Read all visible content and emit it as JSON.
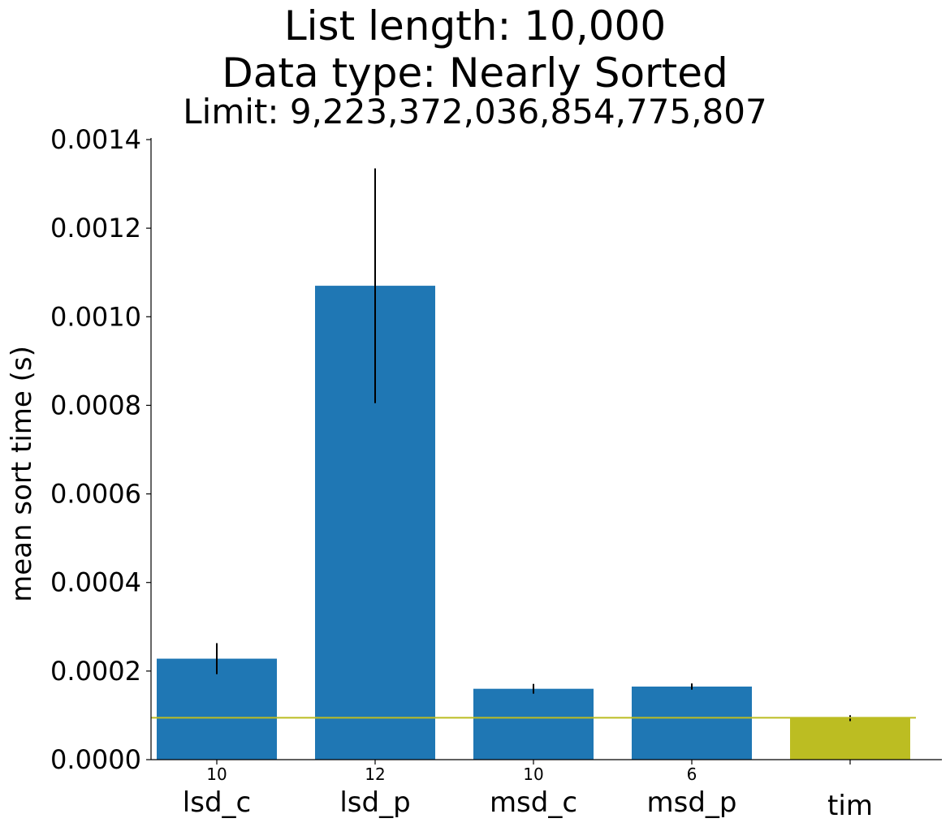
{
  "chart_data": {
    "type": "bar",
    "title": "List length: 10,000",
    "subtitle": "Data type: Nearly Sorted",
    "subtitle2": "Limit: 9,223,372,036,854,775,807",
    "xlabel": "",
    "ylabel": "mean sort time (s)",
    "ylim": [
      0,
      0.0014
    ],
    "yticks": [
      "0.0000",
      "0.0002",
      "0.0004",
      "0.0006",
      "0.0008",
      "0.0010",
      "0.0012",
      "0.0014"
    ],
    "ytick_values": [
      0,
      0.0002,
      0.0004,
      0.0006,
      0.0008,
      0.001,
      0.0012,
      0.0014
    ],
    "categories": [
      "lsd_c",
      "lsd_p",
      "msd_c",
      "msd_p",
      "tim"
    ],
    "values": [
      0.000228,
      0.00107,
      0.00016,
      0.000165,
      9.45e-05
    ],
    "error_low": [
      0.000193,
      0.000805,
      0.000149,
      0.000158,
      8.7e-05
    ],
    "error_high": [
      0.000263,
      0.001335,
      0.000171,
      0.000172,
      0.0001002
    ],
    "bar_labels": [
      "10",
      "12",
      "10",
      "6",
      ""
    ],
    "bar_colors": [
      "#1f77b4",
      "#1f77b4",
      "#1f77b4",
      "#1f77b4",
      "#bcbd22"
    ],
    "reference_line": {
      "value": 9.45e-05,
      "color": "#bcbd22"
    },
    "grid": false,
    "legend": "none"
  }
}
